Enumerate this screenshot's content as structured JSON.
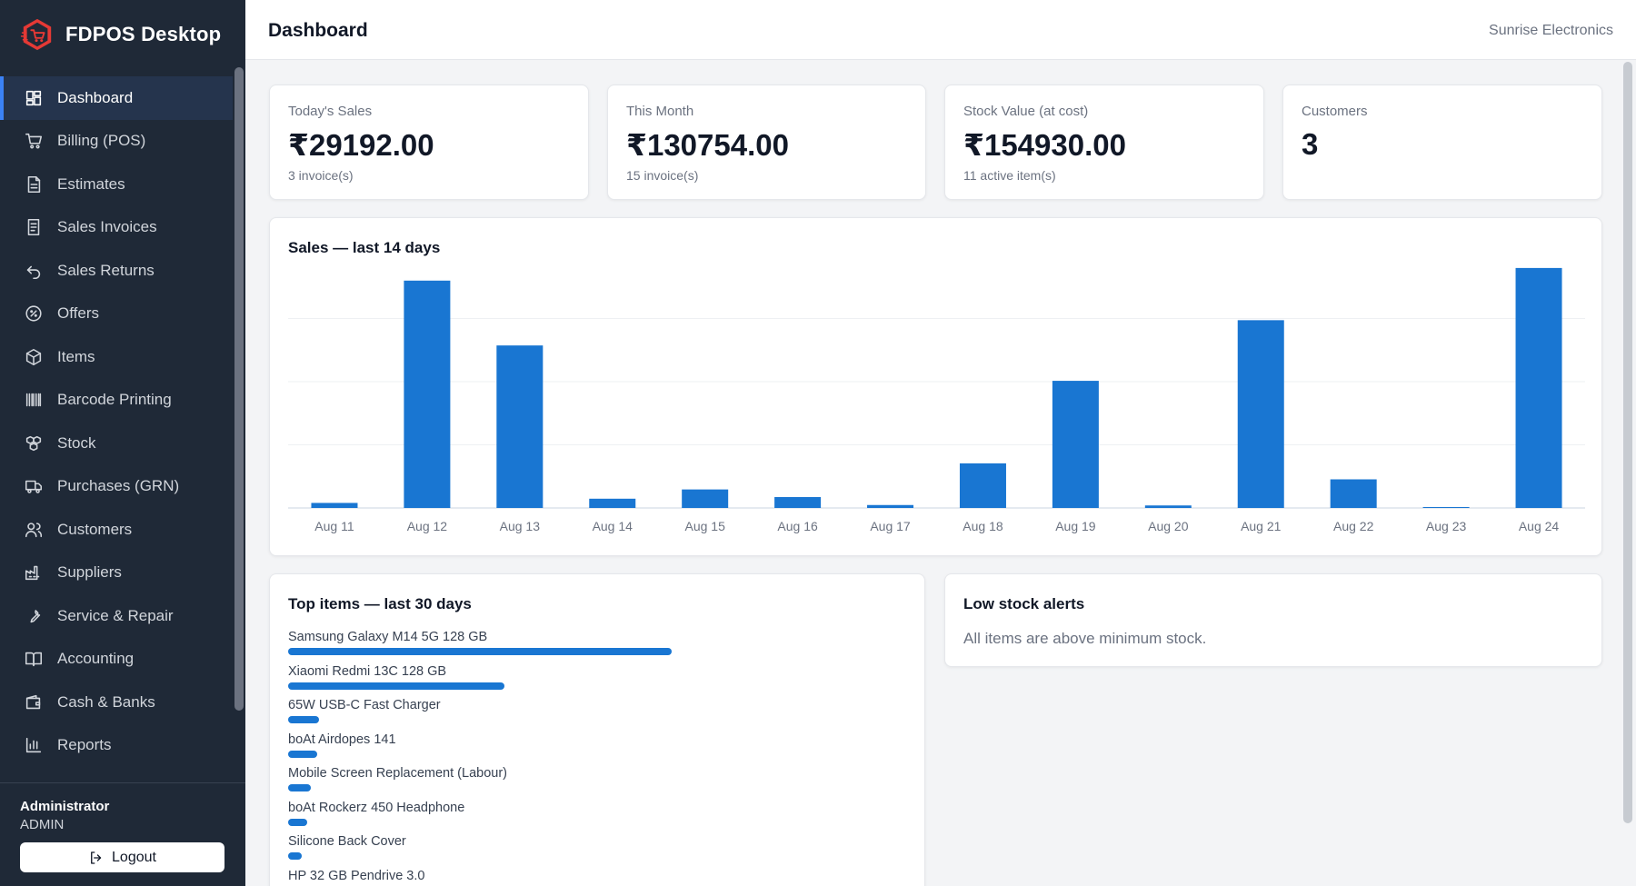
{
  "app": {
    "name": "FDPOS Desktop",
    "company": "Sunrise Electronics",
    "accent": "#1976d2",
    "danger": "#e53935"
  },
  "header": {
    "title": "Dashboard"
  },
  "sidebar": {
    "items": [
      {
        "label": "Dashboard",
        "icon": "dashboard-icon",
        "active": true
      },
      {
        "label": "Billing (POS)",
        "icon": "cart-icon"
      },
      {
        "label": "Estimates",
        "icon": "document-icon"
      },
      {
        "label": "Sales Invoices",
        "icon": "receipt-icon"
      },
      {
        "label": "Sales Returns",
        "icon": "return-icon"
      },
      {
        "label": "Offers",
        "icon": "badge-percent-icon"
      },
      {
        "label": "Items",
        "icon": "package-icon"
      },
      {
        "label": "Barcode Printing",
        "icon": "barcode-icon"
      },
      {
        "label": "Stock",
        "icon": "boxes-icon"
      },
      {
        "label": "Purchases (GRN)",
        "icon": "truck-icon"
      },
      {
        "label": "Customers",
        "icon": "users-icon"
      },
      {
        "label": "Suppliers",
        "icon": "factory-icon"
      },
      {
        "label": "Service & Repair",
        "icon": "wrench-icon"
      },
      {
        "label": "Accounting",
        "icon": "book-icon"
      },
      {
        "label": "Cash & Banks",
        "icon": "wallet-icon"
      },
      {
        "label": "Reports",
        "icon": "bar-chart-icon"
      }
    ],
    "user": {
      "name": "Administrator",
      "role": "ADMIN"
    },
    "logout_label": "Logout"
  },
  "stats": [
    {
      "label": "Today's Sales",
      "value": "₹29192.00",
      "sub": "3 invoice(s)"
    },
    {
      "label": "This Month",
      "value": "₹130754.00",
      "sub": "15 invoice(s)"
    },
    {
      "label": "Stock Value (at cost)",
      "value": "₹154930.00",
      "sub": "11 active item(s)"
    },
    {
      "label": "Customers",
      "value": "3",
      "sub": ""
    }
  ],
  "sales_chart": {
    "title": "Sales — last 14 days"
  },
  "chart_data": {
    "type": "bar",
    "title": "Sales — last 14 days",
    "categories": [
      "Aug 11",
      "Aug 12",
      "Aug 13",
      "Aug 14",
      "Aug 15",
      "Aug 16",
      "Aug 17",
      "Aug 18",
      "Aug 19",
      "Aug 20",
      "Aug 21",
      "Aug 22",
      "Aug 23",
      "Aug 24"
    ],
    "values": [
      600,
      27000,
      19300,
      1100,
      2200,
      1300,
      350,
      5300,
      15100,
      300,
      22300,
      3400,
      0,
      28500
    ],
    "ylim": [
      0,
      30000
    ],
    "grid": true,
    "color": "#1976d2"
  },
  "top_items": {
    "title": "Top items — last 30 days",
    "items": [
      {
        "name": "Samsung Galaxy M14 5G 128 GB",
        "share": 1.0
      },
      {
        "name": "Xiaomi Redmi 13C 128 GB",
        "share": 0.565
      },
      {
        "name": "65W USB-C Fast Charger",
        "share": 0.08
      },
      {
        "name": "boAt Airdopes 141",
        "share": 0.075
      },
      {
        "name": "Mobile Screen Replacement (Labour)",
        "share": 0.06
      },
      {
        "name": "boAt Rockerz 450 Headphone",
        "share": 0.05
      },
      {
        "name": "Silicone Back Cover",
        "share": 0.035
      },
      {
        "name": "HP 32 GB Pendrive 3.0",
        "share": 0.03
      }
    ]
  },
  "low_stock": {
    "title": "Low stock alerts",
    "message": "All items are above minimum stock."
  }
}
